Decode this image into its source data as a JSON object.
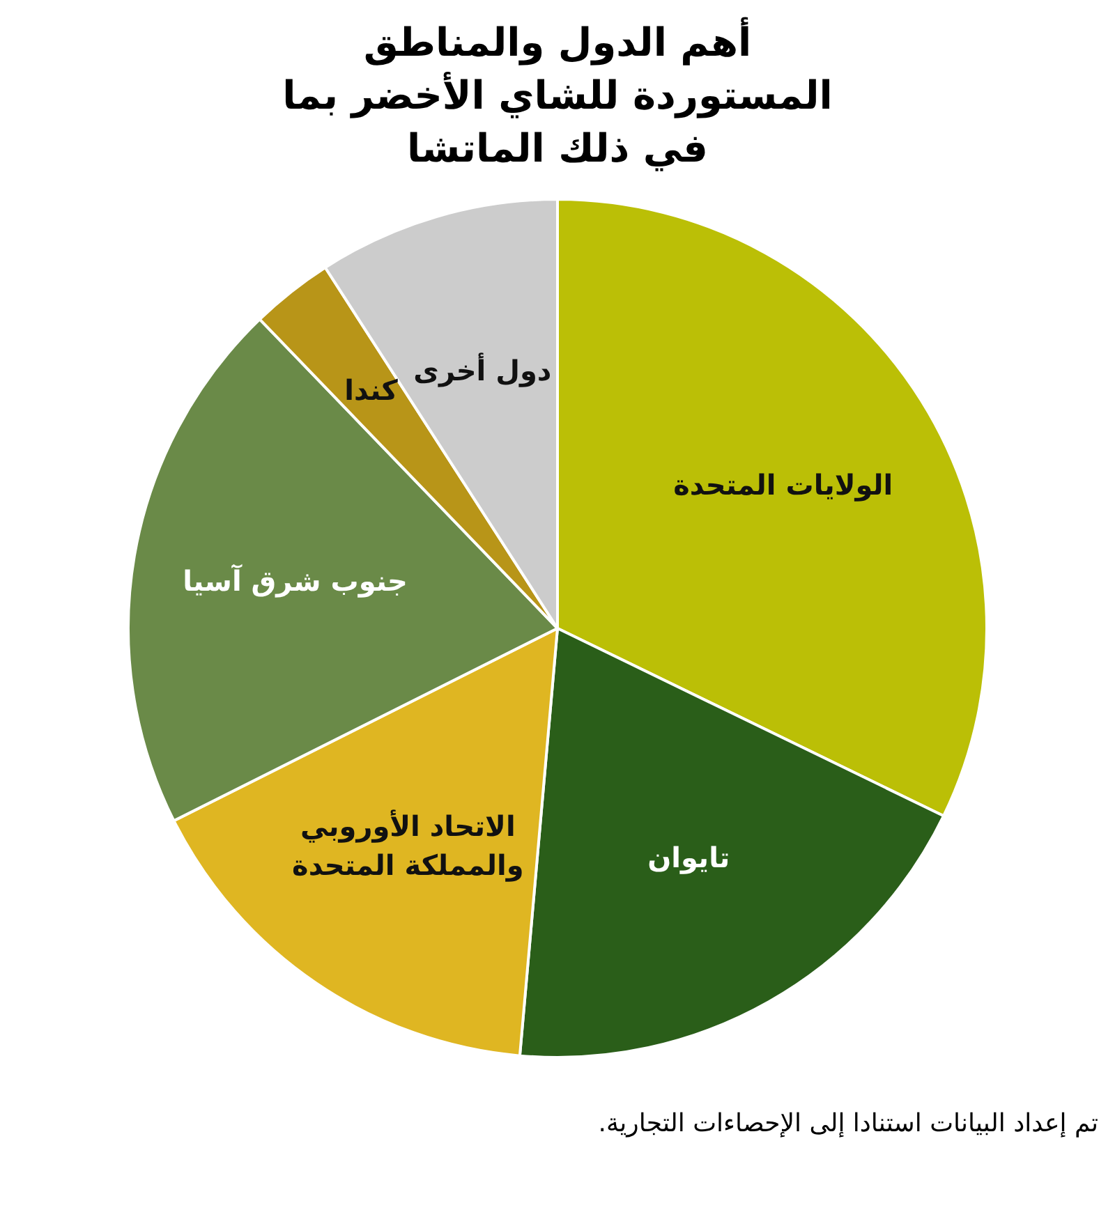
{
  "chart_data": {
    "type": "pie",
    "title": "أهم الدول والمناطق المستوردة للشاي الأخضر بما في ذلك الماتشا",
    "categories": [
      "الولايات المتحدة",
      "تايوان",
      "الاتحاد الأوروبي والمملكة المتحدة",
      "جنوب شرق آسيا",
      "كندا",
      "دول أخرى"
    ],
    "values": [
      32.2,
      19.2,
      16.2,
      20.2,
      3.1,
      9.1
    ],
    "colors": [
      "#bbbf06",
      "#2a5e19",
      "#dfb622",
      "#6a8a48",
      "#b89518",
      "#cccccc"
    ],
    "legend": false,
    "annotations": [
      "تم إعداد البيانات استنادا إلى الإحصاءات التجارية."
    ]
  }
}
